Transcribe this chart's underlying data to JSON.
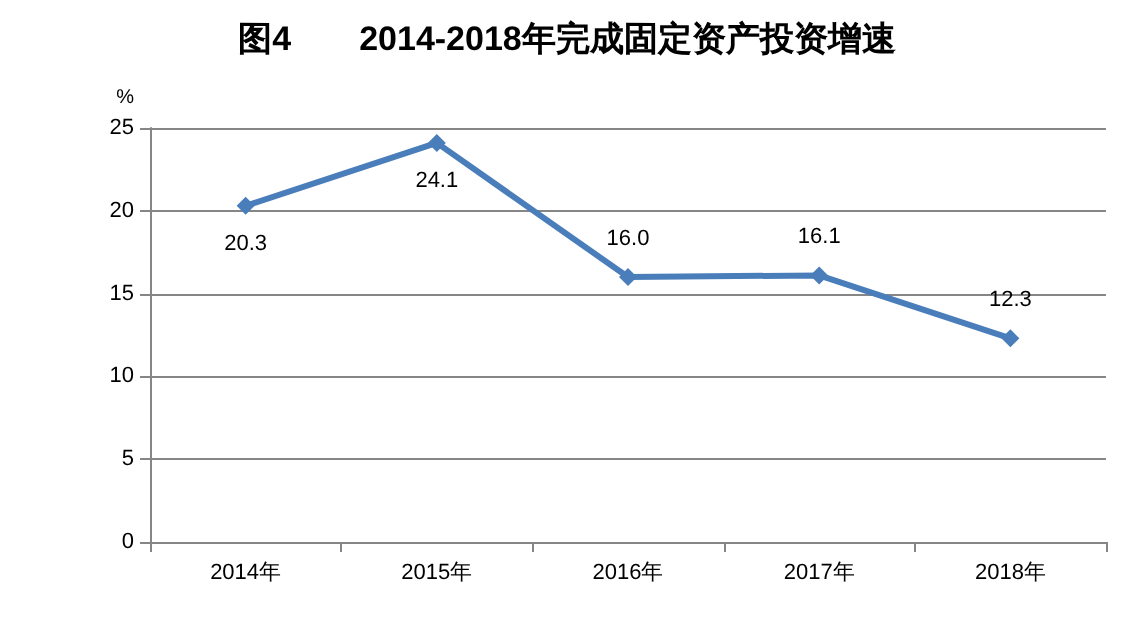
{
  "chart_data": {
    "type": "line",
    "title": "图4　　2014-2018年完成固定资产投资增速",
    "ylabel": "%",
    "categories": [
      "2014年",
      "2015年",
      "2016年",
      "2017年",
      "2018年"
    ],
    "series": [
      {
        "color": "#4a7ebb",
        "values": [
          20.3,
          24.1,
          16.0,
          16.1,
          12.3
        ],
        "value_labels": [
          "20.3",
          "24.1",
          "16.0",
          "16.1",
          "12.3"
        ]
      }
    ],
    "ylim": [
      0,
      25
    ],
    "yticks": [
      0,
      5,
      10,
      15,
      20,
      25
    ],
    "grid": "y",
    "marker": "diamond",
    "line_style": "solid"
  }
}
